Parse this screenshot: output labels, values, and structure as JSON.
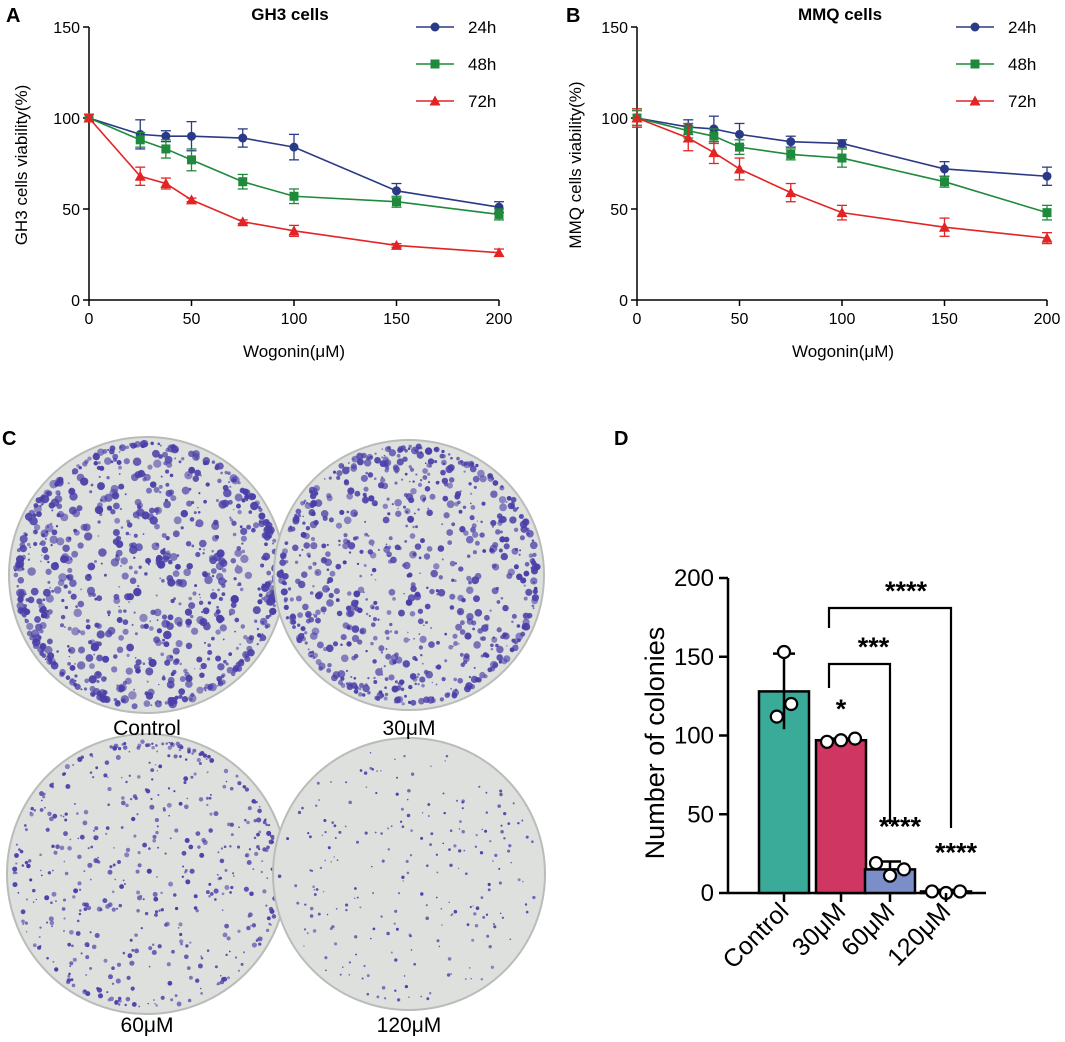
{
  "figure": {
    "panel_A_letter": "A",
    "panel_B_letter": "B",
    "panel_C_letter": "C",
    "panel_D_letter": "D"
  },
  "dishes": {
    "labels": [
      "Control",
      "30μM",
      "60μM",
      "120μM"
    ],
    "dot_color": "#4a3fa8",
    "plate_color": "#dde0dc",
    "rim_color": "#b9bcb8"
  },
  "chart_data": [
    {
      "panel": "A",
      "type": "line",
      "title": "GH3 cells",
      "xlabel": "Wogonin(μM)",
      "ylabel": "GH3 cells viability(%)",
      "xlim": [
        0,
        200
      ],
      "ylim": [
        0,
        150
      ],
      "xticks": [
        0,
        50,
        100,
        150,
        200
      ],
      "yticks": [
        0,
        50,
        100,
        150
      ],
      "x": [
        0,
        25,
        37.5,
        50,
        75,
        100,
        150,
        200
      ],
      "series": [
        {
          "name": "24h",
          "color": "#2b3a86",
          "marker": "circle",
          "values": [
            100,
            91,
            90,
            90,
            89,
            84,
            60,
            51
          ],
          "errors": [
            2,
            8,
            3,
            8,
            5,
            7,
            4,
            3
          ]
        },
        {
          "name": "48h",
          "color": "#1f8a3c",
          "marker": "square",
          "values": [
            100,
            88,
            83,
            77,
            65,
            57,
            54,
            47
          ],
          "errors": [
            2,
            4,
            5,
            6,
            4,
            4,
            3,
            3
          ]
        },
        {
          "name": "72h",
          "color": "#e32424",
          "marker": "triangle",
          "values": [
            100,
            68,
            64,
            55,
            43,
            38,
            30,
            26
          ],
          "errors": [
            2,
            5,
            3,
            1,
            1,
            3,
            1,
            2
          ]
        }
      ]
    },
    {
      "panel": "B",
      "type": "line",
      "title": "MMQ cells",
      "xlabel": "Wogonin(μM)",
      "ylabel": "MMQ cells viability(%)",
      "xlim": [
        0,
        200
      ],
      "ylim": [
        0,
        150
      ],
      "xticks": [
        0,
        50,
        100,
        150,
        200
      ],
      "yticks": [
        0,
        50,
        100,
        150
      ],
      "x": [
        0,
        25,
        37.5,
        50,
        75,
        100,
        150,
        200
      ],
      "series": [
        {
          "name": "24h",
          "color": "#2b3a86",
          "marker": "circle",
          "values": [
            100,
            95,
            94,
            91,
            87,
            86,
            72,
            68
          ],
          "errors": [
            5,
            4,
            7,
            6,
            3,
            2,
            4,
            5
          ]
        },
        {
          "name": "48h",
          "color": "#1f8a3c",
          "marker": "square",
          "values": [
            100,
            93,
            90,
            84,
            80,
            78,
            65,
            48
          ],
          "errors": [
            4,
            4,
            4,
            4,
            3,
            5,
            3,
            4
          ]
        },
        {
          "name": "72h",
          "color": "#e32424",
          "marker": "triangle",
          "values": [
            100,
            89,
            81,
            72,
            59,
            48,
            40,
            34
          ],
          "errors": [
            5,
            7,
            6,
            6,
            5,
            4,
            5,
            3
          ]
        }
      ]
    },
    {
      "panel": "D",
      "type": "bar",
      "title": "",
      "xlabel": "",
      "ylabel": "Number of colonies",
      "ylim": [
        0,
        200
      ],
      "yticks": [
        0,
        50,
        100,
        150,
        200
      ],
      "categories": [
        "Control",
        "30μM",
        "60μM",
        "120μM"
      ],
      "values": [
        128,
        97,
        15,
        1
      ],
      "errors": [
        24,
        1,
        5,
        1
      ],
      "points": [
        [
          153,
          112,
          120
        ],
        [
          96,
          97,
          98
        ],
        [
          19,
          11,
          15
        ],
        [
          1,
          0,
          1
        ]
      ],
      "colors": [
        "#3aab98",
        "#cf3762",
        "#7b8ec8",
        "#ffffff"
      ],
      "point_stars": [
        "",
        "*",
        "****",
        "****"
      ],
      "comparisons": [
        {
          "from": 1,
          "to": 3,
          "label": "****"
        },
        {
          "from": 1,
          "to": 2,
          "label": "***"
        }
      ]
    }
  ]
}
